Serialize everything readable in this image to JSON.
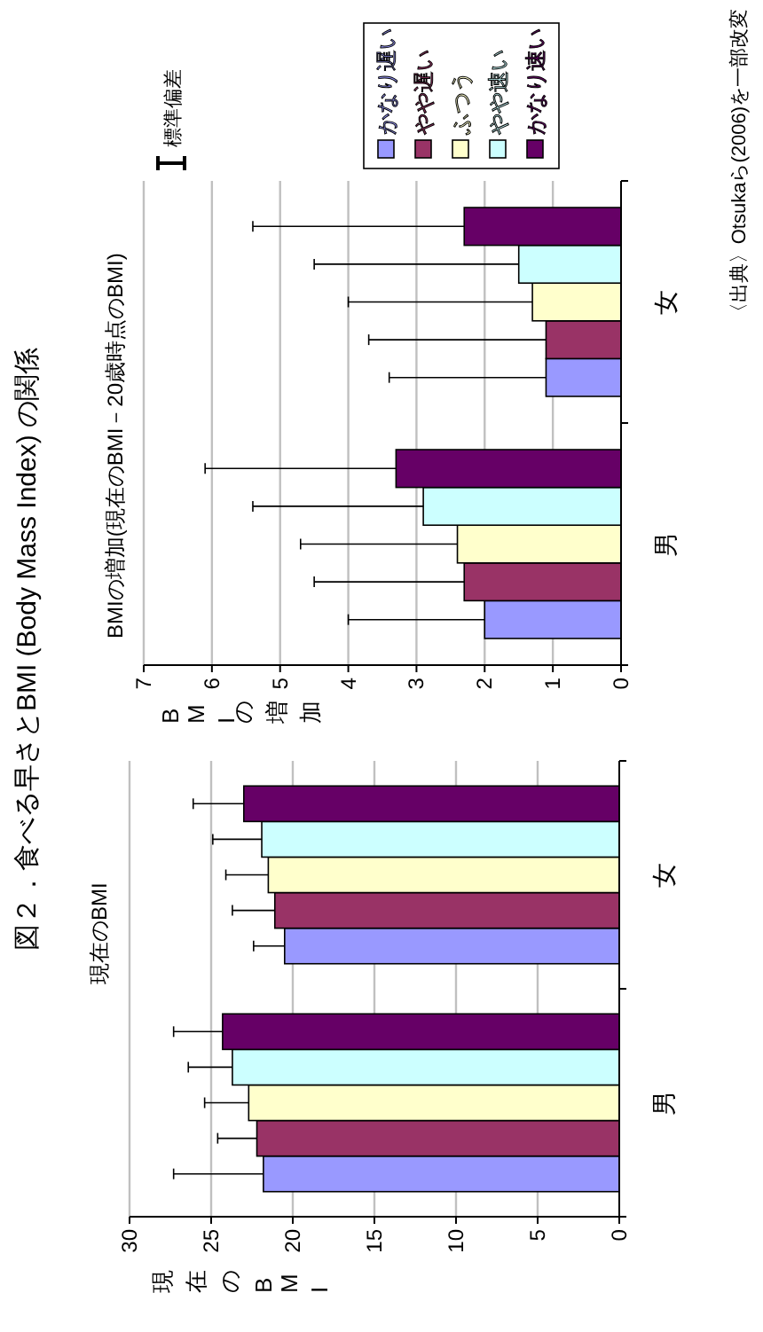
{
  "chart_data": [
    {
      "type": "bar",
      "orientation": "horizontal",
      "title": "図２．食べる早さとBMI (Body Mass Index) の関係",
      "subtitle": "現在のBMI",
      "xlabel": "現在のBMI",
      "categories": [
        "女",
        "男"
      ],
      "xlim": [
        30,
        0
      ],
      "xticks": [
        30,
        25,
        20,
        15,
        10,
        5,
        0
      ],
      "grid": "x",
      "series": [
        {
          "color": "#9999ff",
          "values": [
            20.5,
            21.8
          ],
          "errors": [
            [
              20.5,
              22.4
            ],
            [
              21.8,
              27.3
            ]
          ]
        },
        {
          "color": "#993366",
          "values": [
            21.1,
            22.2
          ],
          "errors": [
            [
              21.1,
              23.7
            ],
            [
              22.2,
              24.6
            ]
          ]
        },
        {
          "color": "#ffffcc",
          "values": [
            21.5,
            22.7
          ],
          "errors": [
            [
              21.5,
              24.1
            ],
            [
              22.7,
              25.4
            ]
          ]
        },
        {
          "color": "#ccffff",
          "values": [
            21.9,
            23.7
          ],
          "errors": [
            [
              21.9,
              24.9
            ],
            [
              23.7,
              26.4
            ]
          ]
        },
        {
          "color": "#660066",
          "values": [
            23.0,
            24.3
          ],
          "errors": [
            [
              23.0,
              26.1
            ],
            [
              24.3,
              27.3
            ]
          ]
        }
      ]
    },
    {
      "type": "bar",
      "orientation": "horizontal",
      "title": "BMIの増加(現在のBMI－20歳時点のBMI)",
      "xlabel": "BMIの増加",
      "categories": [
        "女",
        "男"
      ],
      "xlim": [
        7,
        0
      ],
      "xticks": [
        7,
        6,
        5,
        4,
        3,
        2,
        1,
        0
      ],
      "grid": "x",
      "legend": "top",
      "annotations": [
        "標準偏差",
        "〈出典〉Otsukaら(2006)を一部改変"
      ],
      "series": [
        {
          "name": "かなり遅い",
          "color": "#9999ff",
          "values": [
            1.1,
            2.0
          ],
          "errors": [
            [
              1.1,
              3.4
            ],
            [
              2.0,
              4.0
            ]
          ]
        },
        {
          "name": "やや遅い",
          "color": "#993366",
          "values": [
            1.1,
            2.3
          ],
          "errors": [
            [
              1.1,
              3.7
            ],
            [
              2.3,
              4.5
            ]
          ]
        },
        {
          "name": "ふつう",
          "color": "#ffffcc",
          "values": [
            1.3,
            2.4
          ],
          "errors": [
            [
              1.3,
              4.0
            ],
            [
              2.4,
              4.7
            ]
          ]
        },
        {
          "name": "やや速い",
          "color": "#ccffff",
          "values": [
            1.5,
            2.9
          ],
          "errors": [
            [
              1.5,
              4.5
            ],
            [
              2.9,
              5.4
            ]
          ]
        },
        {
          "name": "かなり速い",
          "color": "#660066",
          "values": [
            2.3,
            3.3
          ],
          "errors": [
            [
              2.3,
              5.4
            ],
            [
              3.3,
              6.1
            ]
          ]
        }
      ]
    }
  ]
}
